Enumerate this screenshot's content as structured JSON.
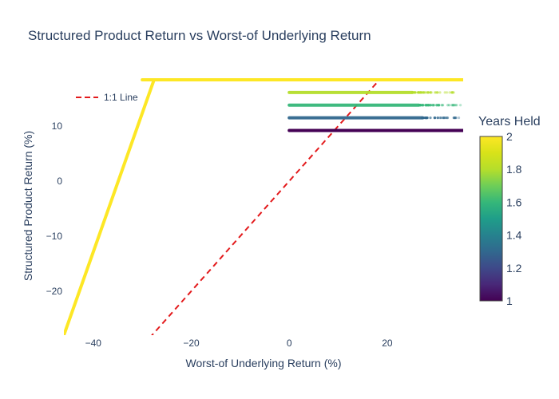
{
  "chart_data": {
    "type": "scatter",
    "title": "Structured Product Return vs Worst-of Underlying Return",
    "xlabel": "Worst-of Underlying Return (%)",
    "ylabel": "Structured Product Return (%)",
    "xlim": [
      -46,
      35.5
    ],
    "ylim": [
      -28,
      18.4
    ],
    "x_ticks": [
      -40,
      -20,
      0,
      20
    ],
    "y_ticks": [
      -20,
      -10,
      0,
      10
    ],
    "grid": false,
    "legend": {
      "position": "top-left",
      "entries": [
        {
          "name": "1:1 Line",
          "style": "dashed",
          "color": "#e31a1c"
        }
      ]
    },
    "colorbar": {
      "title": "Years Held",
      "range": [
        1,
        2
      ],
      "ticks": [
        1,
        1.2,
        1.4,
        1.6,
        1.8,
        2
      ],
      "tick_labels": [
        "1",
        "1.2",
        "1.4",
        "1.6",
        "1.8",
        "2"
      ],
      "colorscale": "Viridis"
    },
    "series": [
      {
        "name": "1:1 Line",
        "kind": "line",
        "color": "#e31a1c",
        "x": [
          -28.5,
          18
        ],
        "y": [
          -28.5,
          18
        ]
      },
      {
        "kind": "scatter",
        "years_held": 2.0,
        "description_of_shape": "loss region y=x for x<0, capped return for x>=0",
        "segments": [
          {
            "x": [
              -46,
              -27.6
            ],
            "y": [
              -28,
              18.4
            ],
            "style": "diag"
          },
          {
            "x": [
              -30,
              35.5
            ],
            "y": [
              18.4,
              18.4
            ],
            "style": "cap"
          }
        ]
      },
      {
        "kind": "scatter",
        "years_held": 1.8,
        "x": [
          0,
          34.5
        ],
        "y": [
          16.1,
          16.1
        ]
      },
      {
        "kind": "scatter",
        "years_held": 1.6,
        "x": [
          0,
          35
        ],
        "y": [
          13.8,
          13.8
        ]
      },
      {
        "kind": "scatter",
        "years_held": 1.3,
        "x": [
          0,
          35
        ],
        "y": [
          11.5,
          11.5
        ]
      },
      {
        "kind": "scatter",
        "years_held": 1.0,
        "x": [
          0,
          35.5
        ],
        "y": [
          9.2,
          9.2
        ]
      }
    ]
  }
}
